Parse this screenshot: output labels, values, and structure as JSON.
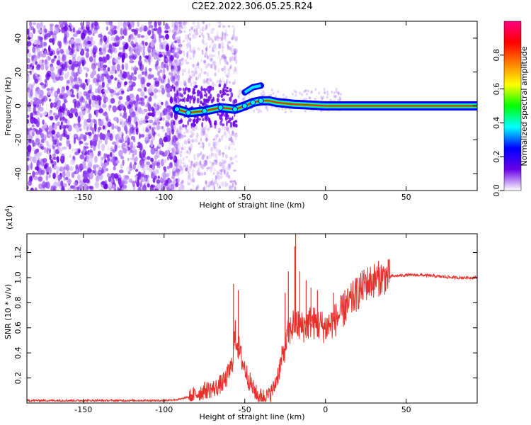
{
  "title": "C2E2.2022.306.05.25.R24",
  "chart_data": [
    {
      "type": "heatmap",
      "xlabel": "Height of straight line (km)",
      "ylabel": "Frequency (Hz)",
      "xlim": [
        -185,
        94
      ],
      "ylim": [
        -50,
        50
      ],
      "xticks": [
        -150,
        -100,
        -50,
        0,
        50
      ],
      "yticks": [
        -40,
        -20,
        0,
        20,
        40
      ],
      "colorbar": {
        "label": "Normalized spectral amplitude",
        "range": [
          0.0,
          1.0
        ],
        "ticks": [
          "0.0",
          "0.2",
          "0.4",
          "0.6",
          "0.8"
        ],
        "colors": [
          "#ffffff",
          "#6a00e6",
          "#0000ff",
          "#00ffff",
          "#00ff00",
          "#ffff00",
          "#ff8000",
          "#ff0000",
          "#ff0080"
        ]
      },
      "features": {
        "noise_region_x": [
          -185,
          -95
        ],
        "transition_region_x": [
          -95,
          -55
        ],
        "signal_track": [
          {
            "x": -92,
            "y": -2
          },
          {
            "x": -85,
            "y": -4
          },
          {
            "x": -75,
            "y": -3
          },
          {
            "x": -65,
            "y": -1
          },
          {
            "x": -56,
            "y": -2
          },
          {
            "x": -50,
            "y": 0
          },
          {
            "x": -45,
            "y": 2
          },
          {
            "x": -40,
            "y": 3
          },
          {
            "x": -35,
            "y": 3
          },
          {
            "x": -30,
            "y": 2
          },
          {
            "x": -20,
            "y": 1
          },
          {
            "x": -10,
            "y": 0.5
          },
          {
            "x": 0,
            "y": 0
          },
          {
            "x": 94,
            "y": 0
          }
        ],
        "upper_branch": [
          {
            "x": -50,
            "y": 8
          },
          {
            "x": -45,
            "y": 11
          },
          {
            "x": -40,
            "y": 12
          }
        ]
      }
    },
    {
      "type": "line",
      "xlabel": "Height of straight line (km)",
      "ylabel": "SNR (10 * v/v)",
      "yscale_label": "(x10",
      "yscale_exp": "4",
      "yscale_close": ")",
      "xlim": [
        -185,
        94
      ],
      "ylim": [
        0.0,
        1.35
      ],
      "xticks": [
        -150,
        -100,
        -50,
        0,
        50
      ],
      "yticks": [
        0.2,
        0.4,
        0.6,
        0.8,
        1.0,
        1.2
      ],
      "color": "#e8302a",
      "envelope": {
        "x": [
          -185,
          -100,
          -90,
          -82,
          -75,
          -68,
          -62,
          -58,
          -56,
          -54,
          -52,
          -50,
          -48,
          -45,
          -42,
          -38,
          -35,
          -32,
          -29,
          -26,
          -23,
          -21,
          -19,
          -17,
          -15,
          -12,
          -9,
          -6,
          -3,
          0,
          5,
          10,
          15,
          20,
          25,
          30,
          35,
          40,
          50,
          60,
          70,
          80,
          94
        ],
        "y": [
          0.02,
          0.02,
          0.03,
          0.06,
          0.1,
          0.12,
          0.18,
          0.3,
          0.55,
          0.45,
          0.35,
          0.28,
          0.2,
          0.12,
          0.06,
          0.05,
          0.06,
          0.12,
          0.25,
          0.4,
          0.55,
          0.6,
          0.65,
          0.62,
          0.6,
          0.62,
          0.65,
          0.63,
          0.62,
          0.6,
          0.65,
          0.72,
          0.8,
          0.88,
          0.95,
          0.98,
          1.0,
          1.01,
          1.02,
          1.02,
          1.01,
          1.0,
          1.0
        ]
      },
      "spikes": [
        {
          "x": -57,
          "y": 0.95
        },
        {
          "x": -54,
          "y": 0.9
        },
        {
          "x": -25,
          "y": 0.88
        },
        {
          "x": -23,
          "y": 1.05
        },
        {
          "x": -19,
          "y": 1.25
        },
        {
          "x": -18.5,
          "y": 1.38
        },
        {
          "x": -16,
          "y": 1.05
        },
        {
          "x": -12,
          "y": 0.98
        },
        {
          "x": -9,
          "y": 0.92
        },
        {
          "x": -5,
          "y": 0.9
        },
        {
          "x": 5,
          "y": 0.88
        },
        {
          "x": 12,
          "y": 0.9
        }
      ]
    }
  ]
}
